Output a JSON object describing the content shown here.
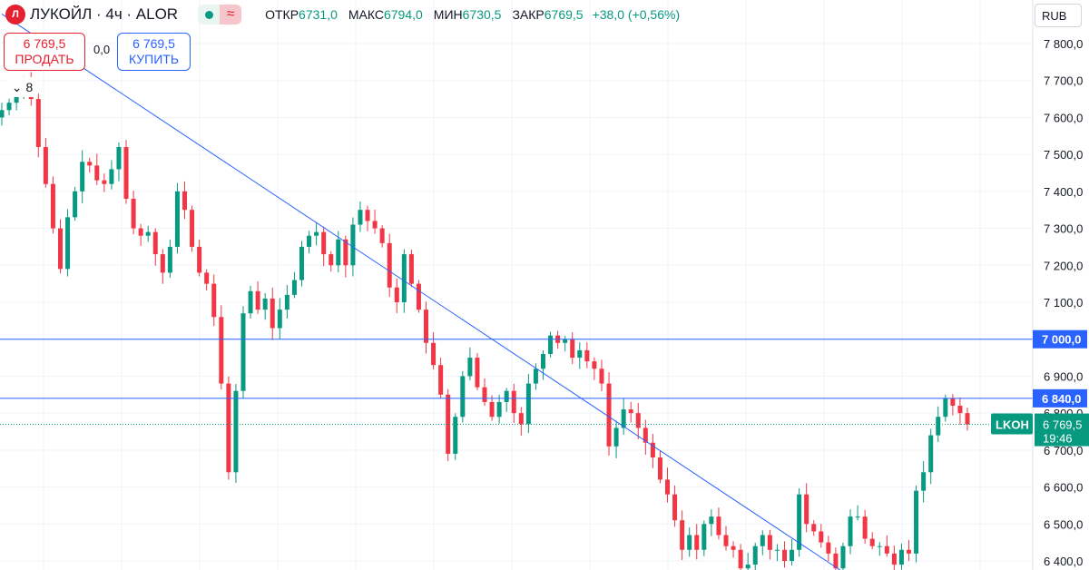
{
  "header": {
    "logo_letter": "Л",
    "symbol_title": "ЛУКОЙЛ · 4ч · ALOR",
    "ohlc": [
      {
        "label": "ОТКР",
        "value": "6731,0"
      },
      {
        "label": "МАКС",
        "value": "6794,0"
      },
      {
        "label": "МИН",
        "value": "6730,5"
      },
      {
        "label": "ЗАКР",
        "value": "6769,5"
      }
    ],
    "change": "+38,0 (+0,56%)"
  },
  "trade": {
    "sell_price": "6 769,5",
    "sell_label": "ПРОДАТЬ",
    "spread": "0,0",
    "buy_price": "6 769,5",
    "buy_label": "КУПИТЬ"
  },
  "indicators_count": "8",
  "currency": "RUB",
  "colors": {
    "up": "#089981",
    "down": "#f23645",
    "line": "#2962ff",
    "grid": "#f0f3fa"
  },
  "chart_data": {
    "type": "candlestick",
    "ticker": "LKOH",
    "interval": "4ч",
    "ylim": [
      6370,
      7890
    ],
    "y_ticks": [
      "7 800,0",
      "7 700,0",
      "7 600,0",
      "7 500,0",
      "7 400,0",
      "7 300,0",
      "7 200,0",
      "7 100,0",
      "7 000,0",
      "6 900,0",
      "6 800,0",
      "6 700,0",
      "6 600,0",
      "6 500,0",
      "6 400,0"
    ],
    "y_tick_values": [
      7800,
      7700,
      7600,
      7500,
      7400,
      7300,
      7200,
      7100,
      7000,
      6900,
      6800,
      6700,
      6600,
      6500,
      6400
    ],
    "closes": [
      7620,
      7640,
      7680,
      7700,
      7650,
      7520,
      7420,
      7300,
      7190,
      7330,
      7400,
      7480,
      7470,
      7430,
      7420,
      7460,
      7520,
      7380,
      7300,
      7280,
      7290,
      7230,
      7180,
      7250,
      7400,
      7350,
      7250,
      7180,
      7150,
      7060,
      6880,
      6640,
      6860,
      7070,
      7130,
      7080,
      7110,
      7030,
      7080,
      7120,
      7160,
      7250,
      7280,
      7290,
      7230,
      7200,
      7270,
      7200,
      7310,
      7350,
      7320,
      7300,
      7260,
      7140,
      7100,
      7230,
      7150,
      7080,
      6990,
      6930,
      6850,
      6690,
      6790,
      6900,
      6950,
      6870,
      6830,
      6790,
      6830,
      6860,
      6800,
      6770,
      6880,
      6920,
      6960,
      7010,
      6990,
      7000,
      6950,
      6970,
      6940,
      6920,
      6880,
      6710,
      6760,
      6810,
      6800,
      6760,
      6720,
      6680,
      6620,
      6580,
      6510,
      6430,
      6470,
      6430,
      6500,
      6520,
      6470,
      6440,
      6430,
      6380,
      6390,
      6440,
      6470,
      6430,
      6430,
      6400,
      6430,
      6580,
      6500,
      6480,
      6450,
      6420,
      6380,
      6440,
      6520,
      6520,
      6460,
      6440,
      6440,
      6420,
      6390,
      6430,
      6420,
      6590,
      6640,
      6740,
      6790,
      6840,
      6820,
      6800,
      6769.5
    ],
    "horizontal_lines": [
      {
        "value": 7000,
        "label": "7 000,0"
      },
      {
        "value": 6840,
        "label": "6 840,0"
      }
    ],
    "trend_line": {
      "from": {
        "bar": 0,
        "y": 7880
      },
      "to": {
        "bar": 115,
        "y": 6370
      }
    },
    "last_price": {
      "label": "LKOH",
      "value": "6 769,5",
      "raw": 6769.5,
      "timer": "19:46"
    }
  }
}
